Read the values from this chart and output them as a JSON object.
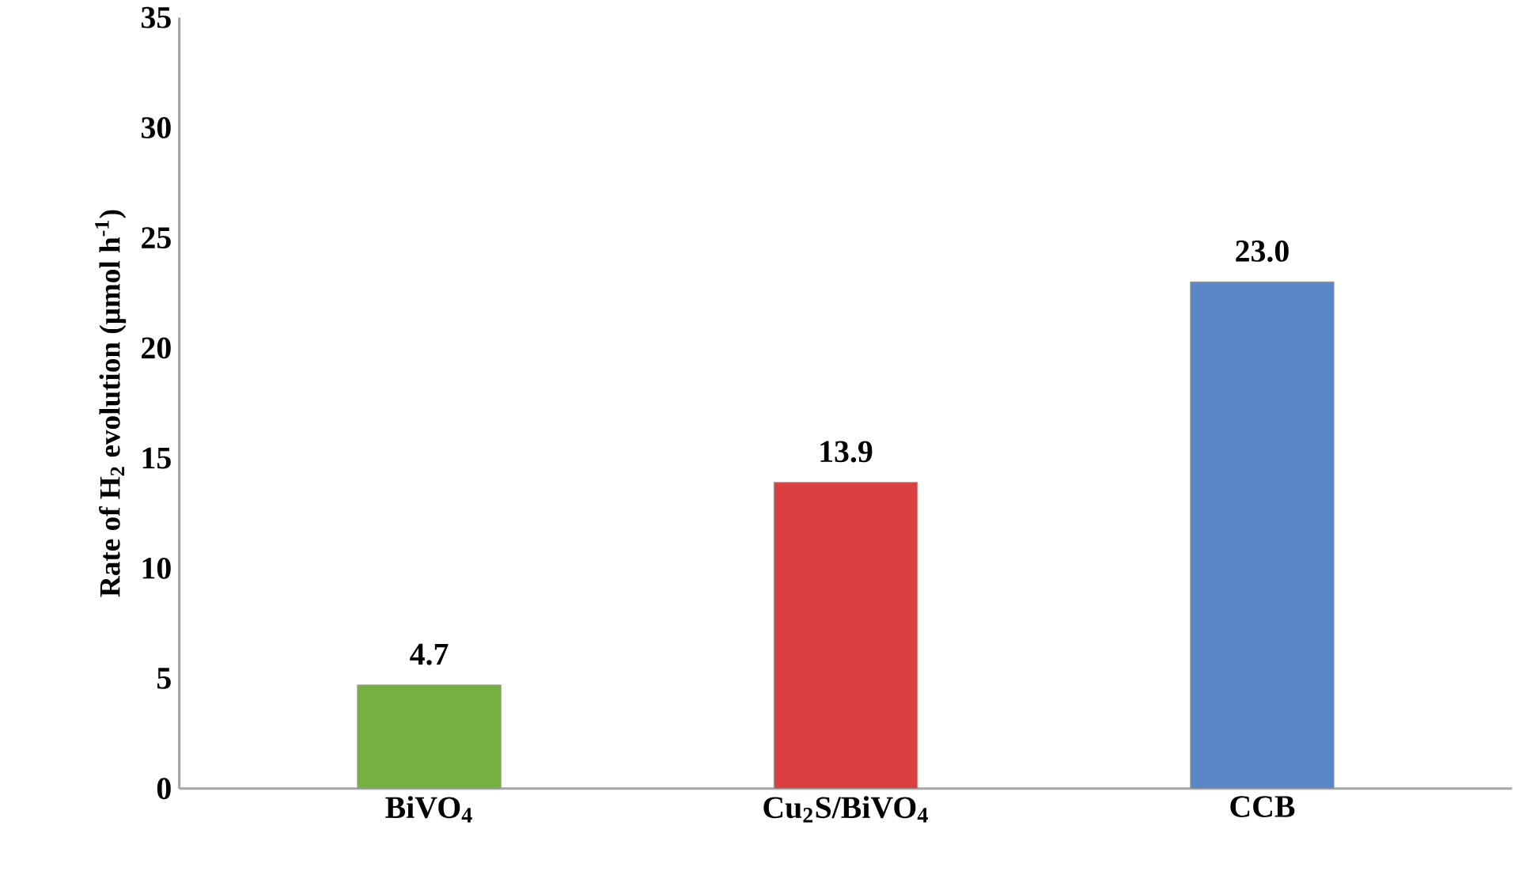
{
  "chart_data": {
    "type": "bar",
    "ylabel": "Rate of  H$_{2}$ evolution (μmol h$^{-1}$)",
    "categories": [
      "BiVO$_{4}$",
      "Cu$_{2}$S/BiVO$_{4}$",
      "CCB"
    ],
    "values": [
      4.7,
      13.9,
      23.0
    ],
    "colors": [
      "#76b041",
      "#d9403f",
      "#5b86c8"
    ],
    "ylim": [
      0,
      35
    ],
    "yticks": [
      0,
      5,
      10,
      15,
      20,
      25,
      30,
      35
    ],
    "value_labels": [
      "4.7",
      "13.9",
      "23.0"
    ],
    "grid": false
  }
}
